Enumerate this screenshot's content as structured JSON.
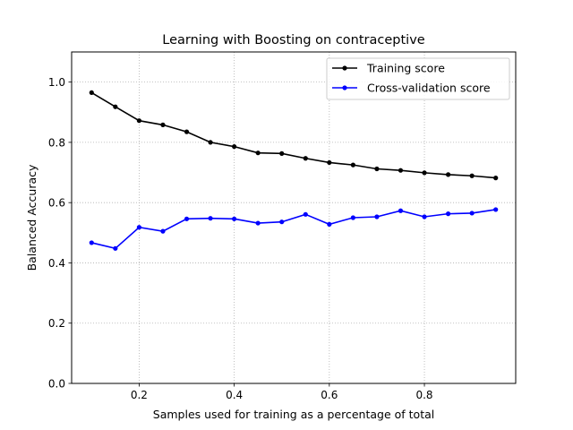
{
  "chart_data": {
    "type": "line",
    "title": "Learning with Boosting on contraceptive",
    "xlabel": "Samples used for training as a percentage of total",
    "ylabel": "Balanced Accuracy",
    "xlim": [
      0.058,
      0.992
    ],
    "ylim": [
      0.0,
      1.1
    ],
    "xticks": [
      0.2,
      0.4,
      0.6,
      0.8
    ],
    "xtick_labels": [
      "0.2",
      "0.4",
      "0.6",
      "0.8"
    ],
    "yticks": [
      0.0,
      0.2,
      0.4,
      0.6,
      0.8,
      1.0
    ],
    "ytick_labels": [
      "0.0",
      "0.2",
      "0.4",
      "0.6",
      "0.8",
      "1.0"
    ],
    "grid": true,
    "legend_position": "top-right",
    "x": [
      0.1,
      0.15,
      0.2,
      0.25,
      0.3,
      0.35,
      0.4,
      0.45,
      0.5,
      0.55,
      0.6,
      0.65,
      0.7,
      0.75,
      0.8,
      0.85,
      0.9,
      0.95
    ],
    "series": [
      {
        "name": "Training score",
        "color": "#000000",
        "values": [
          0.965,
          0.918,
          0.872,
          0.858,
          0.835,
          0.8,
          0.786,
          0.765,
          0.763,
          0.747,
          0.733,
          0.725,
          0.712,
          0.707,
          0.699,
          0.693,
          0.689,
          0.682
        ]
      },
      {
        "name": "Cross-validation score",
        "color": "#0000ff",
        "values": [
          0.467,
          0.448,
          0.518,
          0.505,
          0.546,
          0.548,
          0.546,
          0.532,
          0.536,
          0.561,
          0.528,
          0.55,
          0.553,
          0.573,
          0.553,
          0.563,
          0.565,
          0.577
        ]
      }
    ]
  }
}
